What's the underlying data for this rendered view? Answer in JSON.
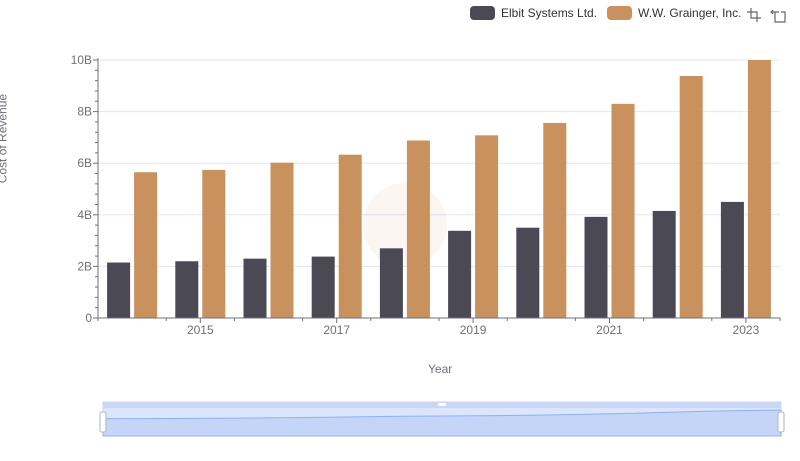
{
  "legend": {
    "items": [
      {
        "label": "Elbit Systems Ltd.",
        "color": "#4a4954"
      },
      {
        "label": "W.W. Grainger, Inc.",
        "color": "#c8915e"
      }
    ]
  },
  "toolbox": {
    "icons": [
      "zoom-icon",
      "zoom-reset-icon"
    ]
  },
  "axes": {
    "ylabel": "Cost of Revenue",
    "xlabel": "Year"
  },
  "chart_data": {
    "type": "bar",
    "categories": [
      "2014",
      "2015",
      "2016",
      "2017",
      "2018",
      "2019",
      "2020",
      "2021",
      "2022",
      "2023"
    ],
    "x_tick_labels": [
      "2015",
      "2017",
      "2019",
      "2021",
      "2023"
    ],
    "y_tick_labels": [
      "0",
      "2B",
      "4B",
      "6B",
      "8B",
      "10B"
    ],
    "ylim": [
      0,
      10000000000
    ],
    "series": [
      {
        "name": "Elbit Systems Ltd.",
        "color": "#4a4954",
        "values": [
          2150000000,
          2200000000,
          2300000000,
          2380000000,
          2700000000,
          3380000000,
          3500000000,
          3920000000,
          4150000000,
          4500000000
        ]
      },
      {
        "name": "W.W. Grainger, Inc.",
        "color": "#c8915e",
        "values": [
          5650000000,
          5740000000,
          6020000000,
          6330000000,
          6880000000,
          7080000000,
          7560000000,
          8300000000,
          9380000000,
          10000000000
        ]
      }
    ],
    "grid": true,
    "legend_position": "top-right",
    "datazoom": {
      "range_percent": [
        0,
        100
      ]
    }
  }
}
